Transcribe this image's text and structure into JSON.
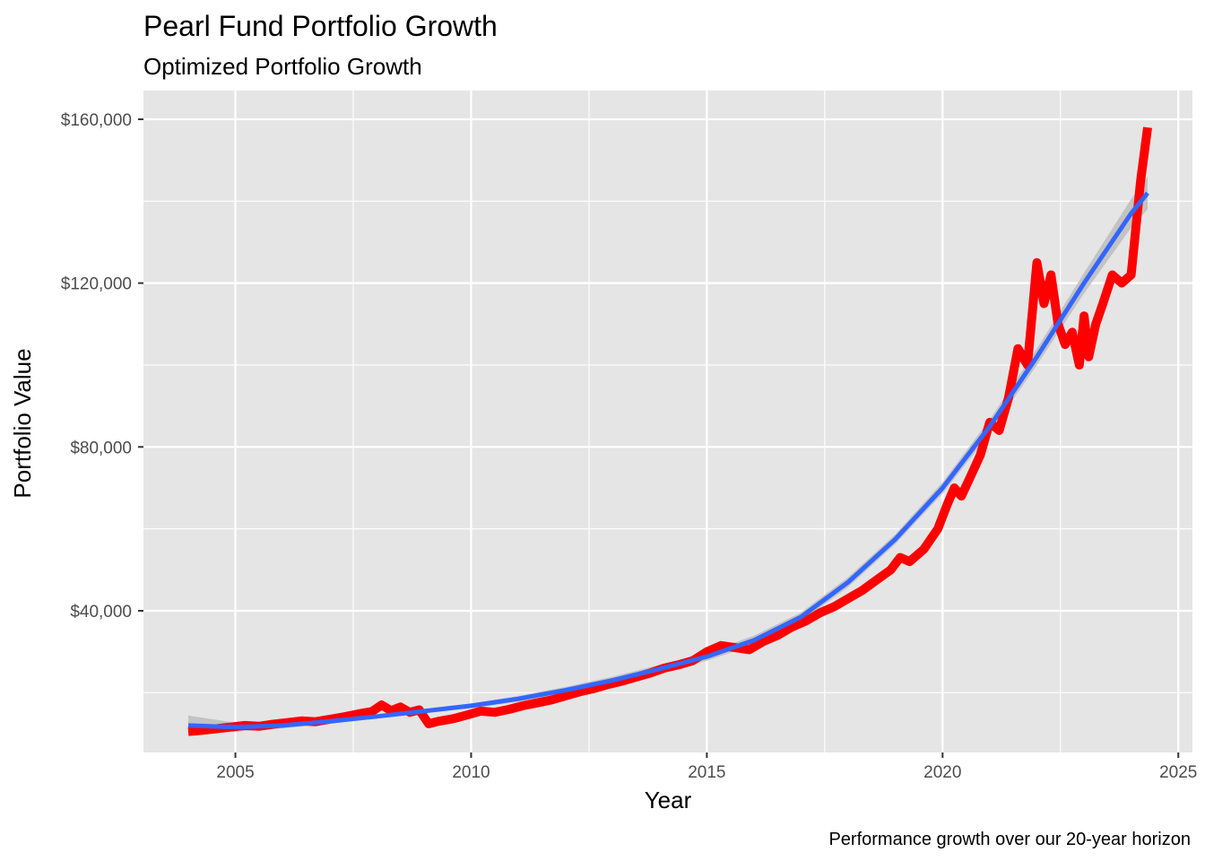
{
  "chart_data": {
    "type": "line",
    "title": "Pearl Fund Portfolio Growth",
    "subtitle": "Optimized Portfolio Growth",
    "xlabel": "Year",
    "ylabel": "Portfolio Value",
    "caption": "Performance growth over our 20-year horizon",
    "xlim": [
      2003.05,
      2025.3
    ],
    "ylim": [
      5400,
      167000
    ],
    "x_ticks": [
      2005,
      2010,
      2015,
      2020,
      2025
    ],
    "x_tick_labels": [
      "2005",
      "2010",
      "2015",
      "2020",
      "2025"
    ],
    "y_ticks": [
      40000,
      80000,
      120000,
      160000
    ],
    "y_tick_labels": [
      "$40,000",
      "$80,000",
      "$120,000",
      "$160,000"
    ],
    "grid": true,
    "legend": "none",
    "colors": {
      "panel": "#e5e5e5",
      "grid": "#ffffff",
      "series": "#ff0000",
      "trend": "#3366ff",
      "band": "#bdbdbd"
    },
    "series": [
      {
        "x": [
          2004.0,
          2004.3,
          2004.6,
          2004.9,
          2005.2,
          2005.5,
          2005.8,
          2006.1,
          2006.4,
          2006.7,
          2007.0,
          2007.3,
          2007.6,
          2007.9,
          2008.1,
          2008.3,
          2008.5,
          2008.7,
          2008.9,
          2009.1,
          2009.3,
          2009.6,
          2009.9,
          2010.2,
          2010.5,
          2010.8,
          2011.1,
          2011.4,
          2011.7,
          2012.0,
          2012.3,
          2012.6,
          2012.9,
          2013.2,
          2013.5,
          2013.8,
          2014.1,
          2014.4,
          2014.7,
          2015.0,
          2015.3,
          2015.6,
          2015.9,
          2016.2,
          2016.5,
          2016.8,
          2017.1,
          2017.4,
          2017.7,
          2018.0,
          2018.3,
          2018.6,
          2018.9,
          2019.1,
          2019.3,
          2019.6,
          2019.9,
          2020.1,
          2020.25,
          2020.4,
          2020.6,
          2020.8,
          2021.0,
          2021.2,
          2021.4,
          2021.6,
          2021.8,
          2022.0,
          2022.15,
          2022.3,
          2022.45,
          2022.6,
          2022.75,
          2022.9,
          2023.0,
          2023.1,
          2023.25,
          2023.4,
          2023.6,
          2023.8,
          2024.0,
          2024.2,
          2024.35
        ],
        "values": [
          10500,
          10800,
          11200,
          11600,
          12000,
          11800,
          12300,
          12700,
          13100,
          12900,
          13500,
          14100,
          14800,
          15400,
          17000,
          15600,
          16500,
          15200,
          15800,
          12400,
          13000,
          13600,
          14500,
          15500,
          15200,
          15900,
          16800,
          17500,
          18200,
          19200,
          20200,
          21000,
          22000,
          22800,
          23800,
          24800,
          26000,
          26800,
          27800,
          30000,
          31500,
          31000,
          30500,
          32500,
          34000,
          36000,
          37500,
          39500,
          41000,
          43000,
          45000,
          47500,
          50000,
          53000,
          52000,
          55000,
          60000,
          66000,
          70000,
          68000,
          73000,
          78000,
          86000,
          84000,
          92000,
          104000,
          100000,
          125000,
          115000,
          122000,
          110000,
          105000,
          108000,
          100000,
          112000,
          102000,
          110000,
          115000,
          122000,
          120000,
          122000,
          145000,
          158000
        ]
      }
    ],
    "trend": {
      "x": [
        2004.0,
        2005.0,
        2006.0,
        2007.0,
        2008.0,
        2009.0,
        2010.0,
        2011.0,
        2012.0,
        2013.0,
        2014.0,
        2015.0,
        2016.0,
        2017.0,
        2018.0,
        2019.0,
        2020.0,
        2021.0,
        2022.0,
        2023.0,
        2024.0,
        2024.35
      ],
      "values": [
        12000,
        11600,
        12000,
        13000,
        14200,
        15500,
        16800,
        18500,
        20600,
        23000,
        25800,
        28800,
        32800,
        38500,
        47000,
        57500,
        70000,
        85000,
        102000,
        120000,
        137000,
        142000
      ],
      "band_low": [
        9600,
        10500,
        11300,
        12400,
        13700,
        15000,
        16200,
        17800,
        19800,
        22100,
        24800,
        27800,
        31700,
        37400,
        45800,
        56300,
        68600,
        83300,
        100000,
        117500,
        133500,
        138000
      ],
      "band_high": [
        14400,
        12700,
        12700,
        13600,
        14700,
        16000,
        17400,
        19200,
        21400,
        23900,
        26800,
        29800,
        33900,
        39600,
        48200,
        58700,
        71400,
        86700,
        104000,
        122500,
        140500,
        146000
      ]
    }
  }
}
